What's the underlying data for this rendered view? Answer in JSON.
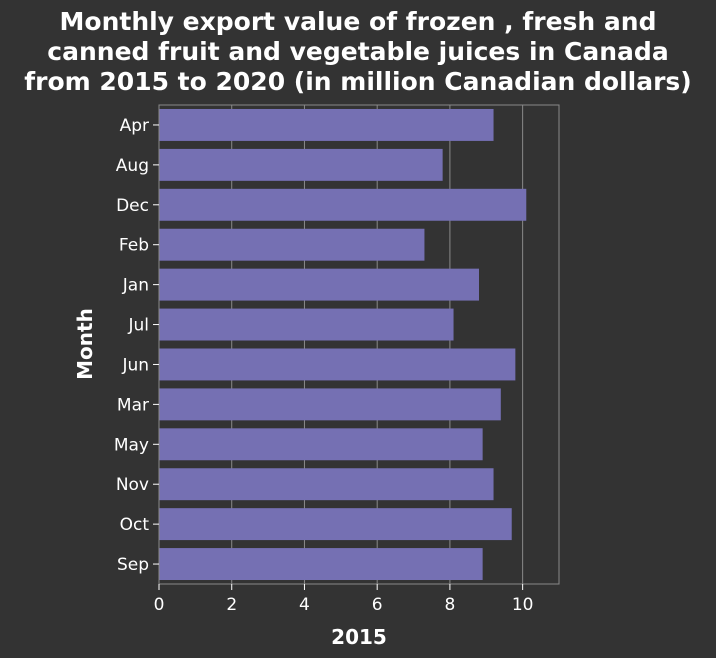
{
  "chart_data": {
    "type": "bar",
    "orientation": "horizontal",
    "title_lines": [
      "Monthly export value of frozen , fresh and",
      "canned fruit and vegetable juices in Canada",
      "from 2015 to 2020 (in million Canadian dollars)"
    ],
    "xlabel": "2015",
    "ylabel": "Month",
    "categories": [
      "Apr",
      "Aug",
      "Dec",
      "Feb",
      "Jan",
      "Jul",
      "Jun",
      "Mar",
      "May",
      "Nov",
      "Oct",
      "Sep"
    ],
    "values": [
      9.2,
      7.8,
      10.1,
      7.3,
      8.8,
      8.1,
      9.8,
      9.4,
      8.9,
      9.2,
      9.7,
      8.9
    ],
    "xlim": [
      0,
      11
    ],
    "xticks": [
      0,
      2,
      4,
      6,
      8,
      10
    ],
    "grid": true,
    "colors": {
      "background": "#333333",
      "bar": "#7570b3",
      "grid": "#8a8a8a",
      "text": "#ffffff"
    }
  }
}
